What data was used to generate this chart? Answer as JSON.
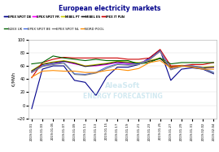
{
  "title": "European electricity markets",
  "ylabel": "€/MWh",
  "ylim": [
    -20,
    100
  ],
  "yticks": [
    -20,
    0,
    20,
    40,
    60,
    80,
    100
  ],
  "dates": [
    "2019-01-01",
    "2019-01-03",
    "2019-01-05",
    "2019-01-07",
    "2019-01-09",
    "2019-01-11",
    "2019-01-13",
    "2019-01-15",
    "2019-01-17",
    "2019-01-19",
    "2019-01-21",
    "2019-01-23",
    "2019-01-25",
    "2019-01-27",
    "2019-01-29",
    "2019-01-31",
    "2019-02-02",
    "2019-02-04"
  ],
  "xtick_labels": [
    "2019-01-01",
    "2019-01-03",
    "2019-01-05",
    "2019-01-07",
    "2019-01-09",
    "2019-01-11",
    "2019-01-13",
    "2019-01-15",
    "2019-01-17",
    "2019-01-19",
    "2019-01-21",
    "2019-01-23",
    "2019-01-25",
    "2019-01-27",
    "2019-01-29",
    "2019-01-31",
    "2019-02-02",
    "2019-02-04"
  ],
  "series": {
    "EPEX SPOT DE": {
      "color": "#00008B",
      "lw": 0.8,
      "values": [
        -5,
        55,
        60,
        60,
        38,
        35,
        15,
        43,
        58,
        58,
        62,
        72,
        84,
        38,
        55,
        57,
        55,
        48
      ]
    },
    "EPEX SPOT FR": {
      "color": "#FF00FF",
      "lw": 0.8,
      "values": [
        50,
        60,
        63,
        67,
        63,
        60,
        60,
        62,
        65,
        63,
        64,
        70,
        82,
        57,
        60,
        60,
        58,
        58
      ]
    },
    "MIBEL PT": {
      "color": "#CCCC00",
      "lw": 0.8,
      "values": [
        53,
        63,
        66,
        68,
        65,
        60,
        62,
        64,
        67,
        66,
        65,
        68,
        72,
        59,
        61,
        60,
        58,
        59
      ]
    },
    "MIBEL ES": {
      "color": "#222222",
      "lw": 0.8,
      "values": [
        52,
        62,
        65,
        67,
        64,
        59,
        61,
        63,
        66,
        65,
        64,
        67,
        71,
        58,
        60,
        59,
        57,
        58
      ]
    },
    "IPEX IT PUN": {
      "color": "#CC0000",
      "lw": 0.8,
      "values": [
        42,
        65,
        70,
        73,
        72,
        72,
        72,
        72,
        72,
        70,
        70,
        72,
        85,
        60,
        60,
        62,
        62,
        65
      ]
    },
    "N2EX UK": {
      "color": "#006400",
      "lw": 0.8,
      "values": [
        63,
        65,
        75,
        72,
        70,
        68,
        70,
        68,
        68,
        68,
        63,
        65,
        72,
        63,
        65,
        65,
        65,
        65
      ]
    },
    "EPEX SPOT BE": {
      "color": "#4169E1",
      "lw": 0.8,
      "values": [
        50,
        60,
        63,
        65,
        48,
        47,
        50,
        58,
        63,
        62,
        63,
        70,
        83,
        55,
        60,
        60,
        57,
        50
      ]
    },
    "EPEX SPOT NL": {
      "color": "#808080",
      "lw": 0.8,
      "values": [
        50,
        59,
        62,
        64,
        47,
        46,
        49,
        56,
        62,
        61,
        62,
        69,
        82,
        54,
        59,
        59,
        56,
        49
      ]
    },
    "NORD POOL": {
      "color": "#FF8C00",
      "lw": 0.8,
      "values": [
        43,
        52,
        53,
        52,
        52,
        50,
        50,
        53,
        55,
        53,
        56,
        65,
        68,
        57,
        60,
        58,
        55,
        55
      ]
    }
  },
  "legend_row1": [
    "EPEX SPOT DE",
    "EPEX SPOT FR",
    "MIBEL PT",
    "MIBEL ES",
    "IPEX IT PUN"
  ],
  "legend_row2": [
    "N2EX UK",
    "EPEX SPOT BE",
    "EPEX SPOT NL",
    "NORD POOL"
  ],
  "background_color": "#ffffff",
  "title_color": "#00008B",
  "title_fontsize": 5.5,
  "watermark_line1": "AleaSoft",
  "watermark_line2": "ENERGY FORECASTING",
  "watermark_color": "#ADD8E6",
  "watermark_alpha": 0.55
}
